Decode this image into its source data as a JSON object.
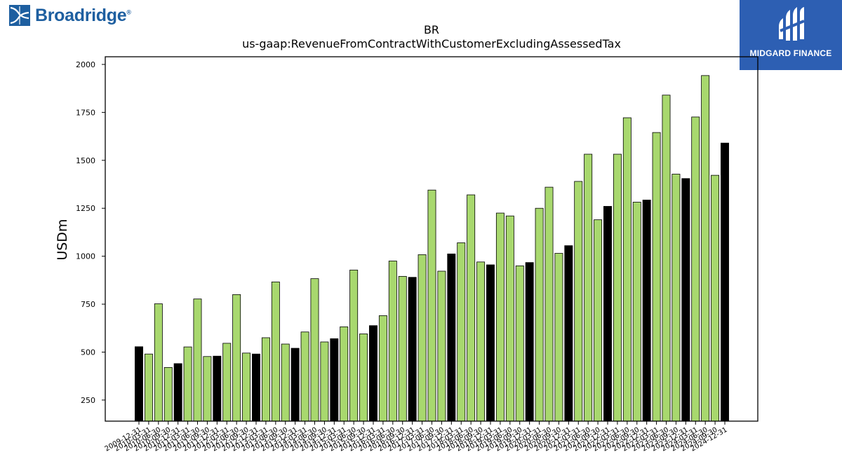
{
  "branding": {
    "left_logo_text": "Broadridge",
    "left_logo_mark": "®",
    "right_logo_text": "MIDGARD FINANCE"
  },
  "chart_data": {
    "type": "bar",
    "title": "BR",
    "subtitle": "us-gaap:RevenueFromContractWithCustomerExcludingAssessedTax",
    "xlabel": "",
    "ylabel": "USDm",
    "ylim": [
      140,
      2040
    ],
    "yticks": [
      250,
      500,
      750,
      1000,
      1250,
      1500,
      1750,
      2000
    ],
    "grid": false,
    "colors": {
      "quarterly": "#a8d86e",
      "annual": "#000000",
      "edge": "#000000"
    },
    "categories": [
      "2009-12-31",
      "2010-03-31",
      "2010-06-30",
      "2010-09-30",
      "2010-12-31",
      "2011-03-31",
      "2011-06-30",
      "2011-09-30",
      "2011-12-31",
      "2012-03-31",
      "2012-06-30",
      "2012-09-30",
      "2012-12-31",
      "2013-03-31",
      "2013-06-30",
      "2013-09-30",
      "2013-12-31",
      "2014-03-31",
      "2014-06-30",
      "2014-09-30",
      "2014-12-31",
      "2015-03-31",
      "2015-06-30",
      "2015-09-30",
      "2015-12-31",
      "2016-03-31",
      "2016-06-30",
      "2016-09-30",
      "2016-12-31",
      "2017-03-31",
      "2017-06-30",
      "2017-09-30",
      "2017-12-31",
      "2018-03-31",
      "2018-06-30",
      "2018-09-30",
      "2018-12-31",
      "2019-03-31",
      "2019-06-30",
      "2019-09-30",
      "2019-12-31",
      "2020-03-31",
      "2020-06-30",
      "2020-09-30",
      "2020-12-31",
      "2021-03-31",
      "2021-06-30",
      "2021-09-30",
      "2021-12-31",
      "2022-03-31",
      "2022-06-30",
      "2022-09-30",
      "2022-12-31",
      "2023-03-31",
      "2023-06-30",
      "2023-09-30",
      "2023-12-31",
      "2024-03-31",
      "2024-06-30",
      "2024-09-30",
      "2024-12-31"
    ],
    "values": [
      528,
      490,
      752,
      420,
      440,
      527,
      777,
      477,
      479,
      546,
      800,
      495,
      490,
      575,
      866,
      542,
      520,
      605,
      883,
      553,
      570,
      632,
      928,
      595,
      638,
      690,
      975,
      895,
      890,
      1008,
      1345,
      922,
      1012,
      1070,
      1320,
      970,
      955,
      1225,
      1210,
      950,
      967,
      1250,
      1360,
      1015,
      1055,
      1390,
      1532,
      1190,
      1260,
      1532,
      1722,
      1282,
      1293,
      1645,
      1840,
      1428,
      1405,
      1726,
      1942,
      1422,
      1590
    ],
    "bar_kinds": [
      "annual",
      "quarterly",
      "quarterly",
      "quarterly",
      "annual",
      "quarterly",
      "quarterly",
      "quarterly",
      "annual",
      "quarterly",
      "quarterly",
      "quarterly",
      "annual",
      "quarterly",
      "quarterly",
      "quarterly",
      "annual",
      "quarterly",
      "quarterly",
      "quarterly",
      "annual",
      "quarterly",
      "quarterly",
      "quarterly",
      "annual",
      "quarterly",
      "quarterly",
      "quarterly",
      "annual",
      "quarterly",
      "quarterly",
      "quarterly",
      "annual",
      "quarterly",
      "quarterly",
      "quarterly",
      "annual",
      "quarterly",
      "quarterly",
      "quarterly",
      "annual",
      "quarterly",
      "quarterly",
      "quarterly",
      "annual",
      "quarterly",
      "quarterly",
      "quarterly",
      "annual",
      "quarterly",
      "quarterly",
      "quarterly",
      "annual",
      "quarterly",
      "quarterly",
      "quarterly",
      "annual",
      "quarterly",
      "quarterly",
      "quarterly",
      "annual"
    ]
  }
}
